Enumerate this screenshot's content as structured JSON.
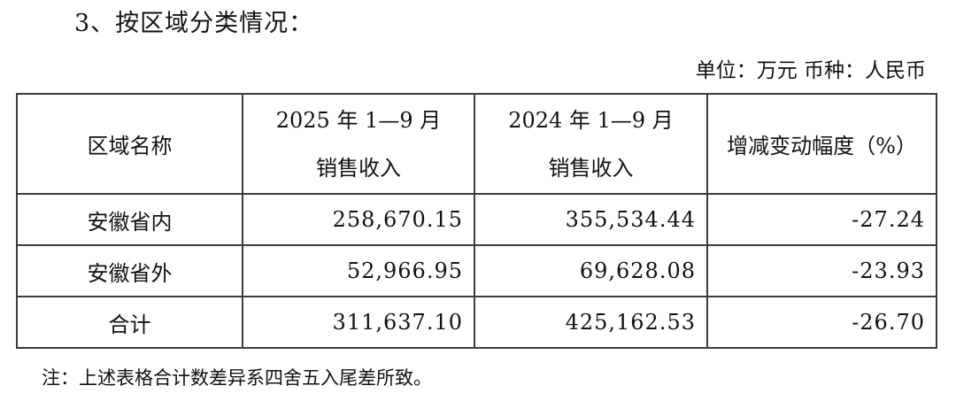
{
  "page": {
    "title": "3、按区域分类情况：",
    "unit_note": "单位：万元 币种：人民币",
    "footnote": "注：上述表格合计数差异系四舍五入尾差所致。"
  },
  "table": {
    "columns": [
      {
        "label": "区域名称"
      },
      {
        "label_line1": "2025 年 1—9 月",
        "label_line2": "销售收入"
      },
      {
        "label_line1": "2024 年 1—9 月",
        "label_line2": "销售收入"
      },
      {
        "label": "增减变动幅度（%）"
      }
    ],
    "rows": [
      {
        "region": "安徽省内",
        "revenue_2025": "258,670.15",
        "revenue_2024": "355,534.44",
        "change_pct": "-27.24"
      },
      {
        "region": "安徽省外",
        "revenue_2025": "52,966.95",
        "revenue_2024": "69,628.08",
        "change_pct": "-23.93"
      },
      {
        "region": "合计",
        "revenue_2025": "311,637.10",
        "revenue_2024": "425,162.53",
        "change_pct": "-26.70"
      }
    ]
  }
}
